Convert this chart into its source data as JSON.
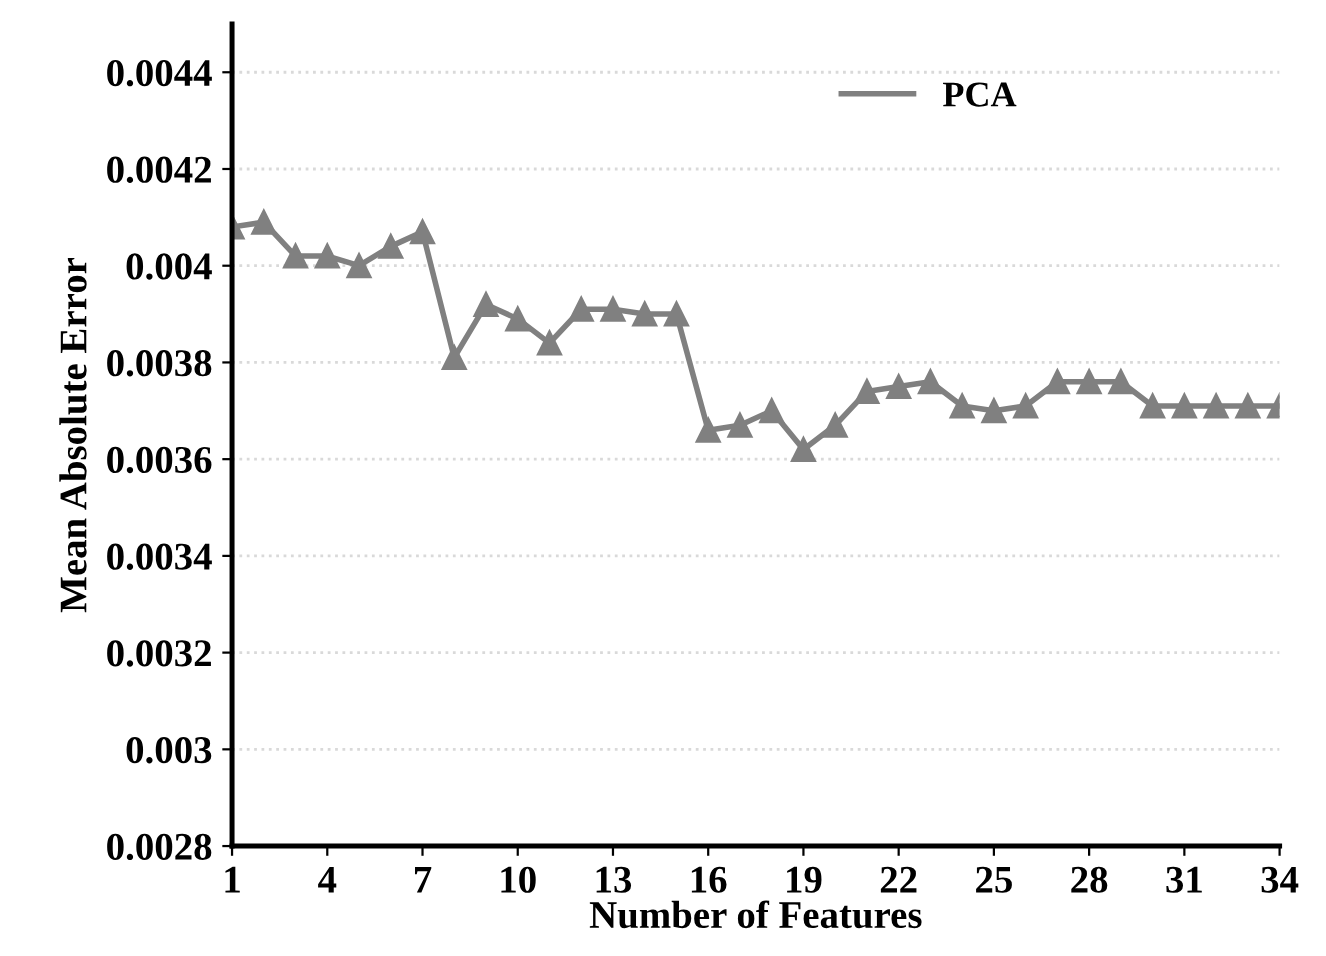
{
  "chart_data": {
    "type": "line",
    "xlabel": "Number of Features",
    "ylabel": "Mean Absolute Error",
    "x": [
      1,
      2,
      3,
      4,
      5,
      6,
      7,
      8,
      9,
      10,
      11,
      12,
      13,
      14,
      15,
      16,
      17,
      18,
      19,
      20,
      21,
      22,
      23,
      24,
      25,
      26,
      27,
      28,
      29,
      30,
      31,
      32,
      33,
      34
    ],
    "series": [
      {
        "name": "PCA",
        "color": "#808080",
        "values": [
          0.00408,
          0.00409,
          0.00402,
          0.00402,
          0.004,
          0.00404,
          0.00407,
          0.00381,
          0.00392,
          0.00389,
          0.00384,
          0.00391,
          0.00391,
          0.0039,
          0.0039,
          0.00366,
          0.00367,
          0.0037,
          0.00362,
          0.00367,
          0.00374,
          0.00375,
          0.00376,
          0.00371,
          0.0037,
          0.00371,
          0.00376,
          0.00376,
          0.00376,
          0.00371,
          0.00371,
          0.00371,
          0.00371,
          0.00371
        ]
      }
    ],
    "xlim": [
      1,
      34
    ],
    "xticks": [
      1,
      4,
      7,
      10,
      13,
      16,
      19,
      22,
      25,
      28,
      31,
      34
    ],
    "ylim": [
      0.0028,
      0.0045
    ],
    "yticks": [
      {
        "value": 0.0028,
        "label": "0.0028"
      },
      {
        "value": 0.003,
        "label": "0.003"
      },
      {
        "value": 0.0032,
        "label": "0.0032"
      },
      {
        "value": 0.0034,
        "label": "0.0034"
      },
      {
        "value": 0.0036,
        "label": "0.0036"
      },
      {
        "value": 0.0038,
        "label": "0.0038"
      },
      {
        "value": 0.004,
        "label": "0.004"
      },
      {
        "value": 0.0042,
        "label": "0.0042"
      },
      {
        "value": 0.0044,
        "label": "0.0044"
      }
    ],
    "grid": "y",
    "legend": "top right",
    "marker": "triangle",
    "line_style": "solid"
  }
}
